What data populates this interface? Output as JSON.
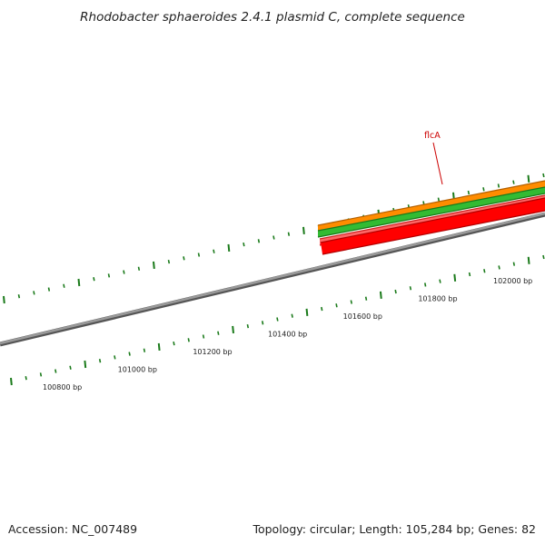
{
  "title": "Rhodobacter sphaeroides 2.4.1 plasmid C, complete sequence",
  "footer": {
    "accession": "Accession: NC_007489",
    "summary": "Topology: circular; Length: 105,284 bp; Genes: 82"
  },
  "scale_labels": [
    "100800 bp",
    "101000 bp",
    "101200 bp",
    "101400 bp",
    "101600 bp",
    "101800 bp",
    "102000 bp"
  ],
  "genes": [
    {
      "name": "flcA",
      "labeled": true,
      "track": "reverse-cds",
      "color": "#ff0000"
    }
  ],
  "tracks": {
    "backbone_color": "#808080",
    "forward_gene_color": "#ff8c00",
    "forward_cds_color": "#33bb33",
    "reverse_cds_color": "#ff0000",
    "tick_color": "#1a7a1a"
  }
}
